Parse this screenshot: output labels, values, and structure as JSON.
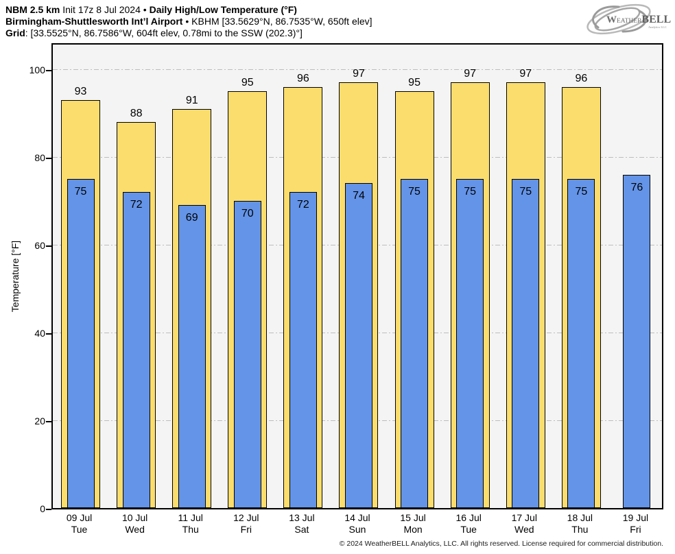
{
  "header": {
    "line1": {
      "model": "NBM 2.5 km",
      "init": "Init 17z 8 Jul 2024",
      "bullet": "•",
      "title": "Daily High/Low Temperature (°F)"
    },
    "line2": {
      "station": "Birmingham-Shuttlesworth Int’l Airport",
      "bullet": "•",
      "info": "KBHM [33.5629°N, 86.7535°W, 650ft elev]"
    },
    "line3": {
      "label": "Grid",
      "info": ": [33.5525°N, 86.7586°W, 604ft elev, 0.78mi to the SSW (202.3)°]"
    }
  },
  "logo": {
    "brand_w": "W",
    "brand_eather": "EATHER",
    "brand_bell": "BELL",
    "sub": "Analytics LLC"
  },
  "chart_data": {
    "type": "bar",
    "title": "Daily High/Low Temperature (°F)",
    "xlabel": "",
    "ylabel": "Temperature [°F]",
    "ylim": [
      0,
      106.25
    ],
    "yticks": [
      0,
      20,
      40,
      60,
      80,
      100
    ],
    "grid": "horizontal dash-dot at yticks above 0",
    "legend": "none (values labeled on bars)",
    "categories": [
      {
        "date": "09 Jul",
        "day": "Tue"
      },
      {
        "date": "10 Jul",
        "day": "Wed"
      },
      {
        "date": "11 Jul",
        "day": "Thu"
      },
      {
        "date": "12 Jul",
        "day": "Fri"
      },
      {
        "date": "13 Jul",
        "day": "Sat"
      },
      {
        "date": "14 Jul",
        "day": "Sun"
      },
      {
        "date": "15 Jul",
        "day": "Mon"
      },
      {
        "date": "16 Jul",
        "day": "Tue"
      },
      {
        "date": "17 Jul",
        "day": "Wed"
      },
      {
        "date": "18 Jul",
        "day": "Thu"
      },
      {
        "date": "19 Jul",
        "day": "Fri"
      }
    ],
    "series": [
      {
        "name": "Daily High",
        "color": "#FBDD6D",
        "values": [
          93,
          88,
          91,
          95,
          96,
          97,
          95,
          97,
          97,
          96,
          null
        ]
      },
      {
        "name": "Daily Low",
        "color": "#6494E8",
        "values": [
          75,
          72,
          69,
          70,
          72,
          74,
          75,
          75,
          75,
          75,
          76
        ]
      }
    ],
    "colors": {
      "plot_background": "#F4F4F4",
      "gridline": "#BDBDBD",
      "axis": "#000000"
    }
  },
  "footer": {
    "copyright": "© 2024 WeatherBELL Analytics, LLC. All rights reserved. License required for commercial distribution."
  }
}
